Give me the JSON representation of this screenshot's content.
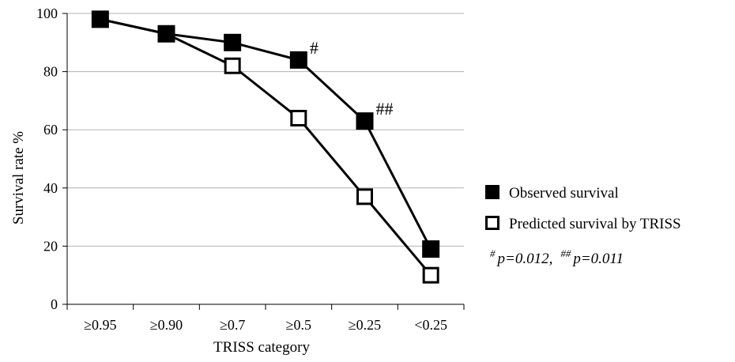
{
  "chart_data": {
    "type": "line",
    "categories": [
      "≥0.95",
      "≥0.90",
      "≥0.7",
      "≥0.5",
      "≥0.25",
      "<0.25"
    ],
    "series": [
      {
        "name": "Observed survival",
        "values": [
          98,
          93,
          90,
          84,
          63,
          19
        ],
        "marker": "filled-square",
        "color": "#000000"
      },
      {
        "name": "Predicted survival by TRISS",
        "values": [
          98,
          93,
          82,
          64,
          37,
          10
        ],
        "marker": "open-square",
        "color": "#000000"
      }
    ],
    "xlabel": "TRISS category",
    "ylabel": "Survival rate %",
    "ylim": [
      0,
      100
    ],
    "yticks": [
      0,
      20,
      40,
      60,
      80,
      100
    ],
    "grid": true,
    "legend_position": "right",
    "annotations": [
      {
        "series": 0,
        "category_index": 3,
        "text": "#"
      },
      {
        "series": 0,
        "category_index": 4,
        "text": "##"
      }
    ],
    "pvalue_note": [
      {
        "mark": "#",
        "text": "p=0.012,"
      },
      {
        "mark": "##",
        "text": "p=0.011"
      }
    ]
  }
}
